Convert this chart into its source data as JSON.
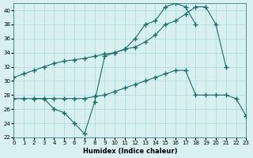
{
  "xlabel": "Humidex (Indice chaleur)",
  "ylabel": "",
  "xlim": [
    0,
    23
  ],
  "ylim": [
    22,
    41
  ],
  "yticks": [
    22,
    24,
    26,
    28,
    30,
    32,
    34,
    36,
    38,
    40
  ],
  "xticks": [
    0,
    1,
    2,
    3,
    4,
    5,
    6,
    7,
    8,
    9,
    10,
    11,
    12,
    13,
    14,
    15,
    16,
    17,
    18,
    19,
    20,
    21,
    22,
    23
  ],
  "bg_color": "#d8f0f0",
  "line_color": "#1a6b6b",
  "grid_color": "#aadada",
  "series1_x": [
    0,
    1,
    2,
    3,
    4,
    5,
    6,
    7,
    8,
    9,
    10,
    11,
    12,
    13,
    14,
    15,
    16,
    17,
    18,
    19,
    20,
    21
  ],
  "series1_y": [
    30.5,
    31.0,
    31.5,
    32.0,
    32.5,
    32.8,
    33.0,
    33.2,
    33.5,
    33.8,
    34.0,
    34.5,
    34.8,
    35.5,
    36.5,
    38.0,
    38.5,
    39.5,
    40.5,
    40.5,
    38.0,
    32.0
  ],
  "series2_x": [
    0,
    1,
    2,
    3,
    4,
    5,
    6,
    7,
    8,
    9,
    10,
    11,
    12,
    13,
    14,
    15,
    16,
    17,
    18,
    19,
    20,
    21,
    22,
    23
  ],
  "series2_y": [
    27.5,
    27.5,
    27.5,
    27.5,
    27.5,
    27.5,
    27.5,
    27.5,
    27.8,
    28.0,
    28.5,
    29.0,
    29.5,
    30.0,
    30.5,
    31.0,
    31.5,
    31.5,
    28.0,
    28.0,
    28.0,
    28.0,
    27.5,
    25.0
  ],
  "series3_x": [
    2,
    3,
    4,
    5,
    6,
    7,
    8,
    9,
    10,
    11,
    12,
    13,
    14,
    15,
    16,
    17,
    18
  ],
  "series3_y": [
    27.5,
    27.5,
    26.0,
    25.5,
    24.0,
    22.5,
    27.0,
    33.5,
    34.0,
    34.5,
    36.0,
    38.0,
    38.5,
    40.5,
    41.0,
    40.5,
    38.0
  ]
}
